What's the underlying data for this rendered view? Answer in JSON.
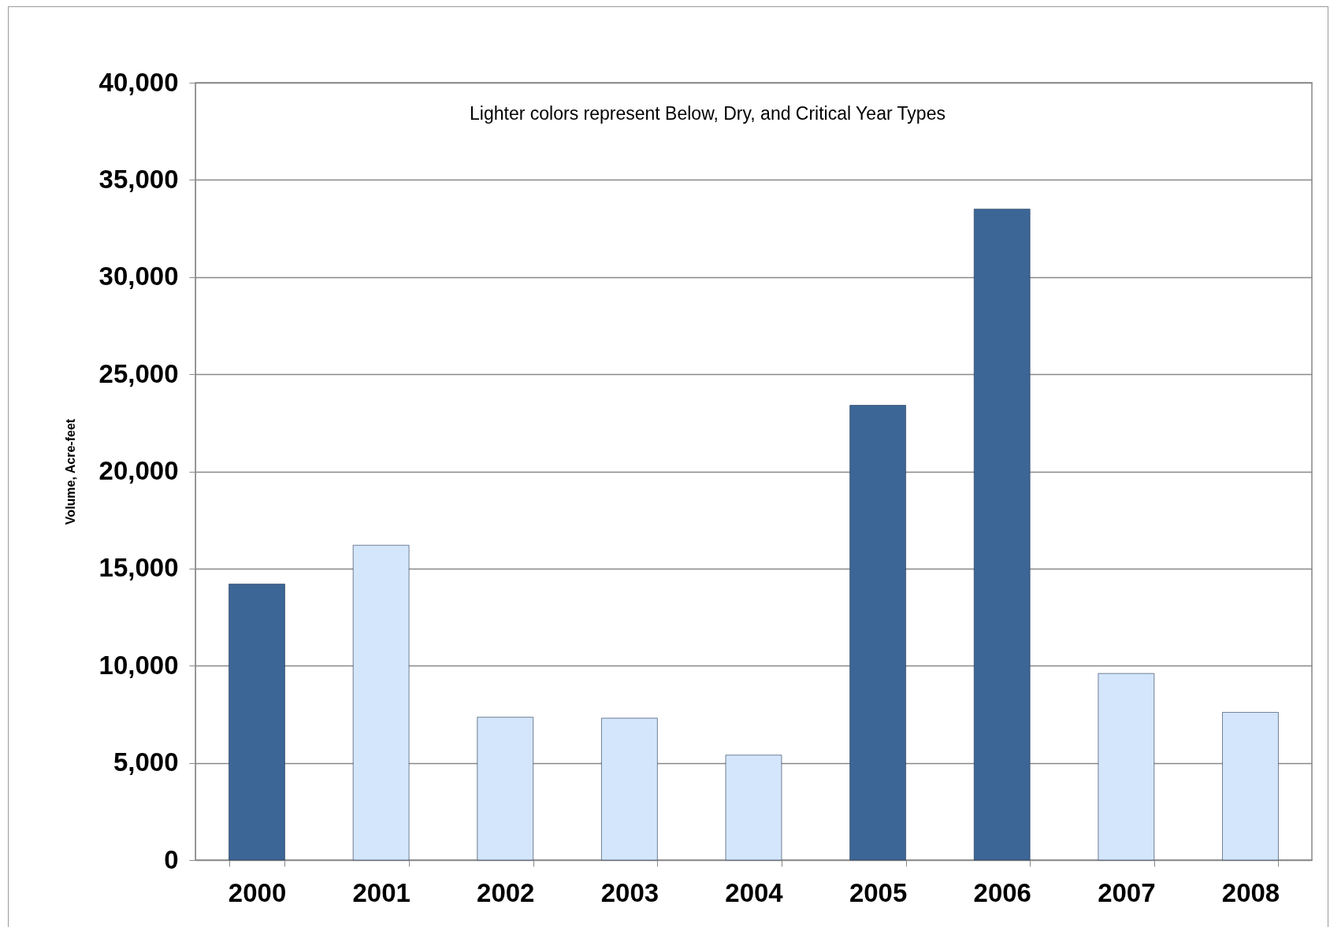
{
  "chart_data": {
    "type": "bar",
    "ylabel": "Volume, Acre-feet",
    "categories": [
      "2000",
      "2001",
      "2002",
      "2003",
      "2004",
      "2005",
      "2006",
      "2007",
      "2008"
    ],
    "values": [
      14200,
      16200,
      7350,
      7300,
      5400,
      23400,
      33500,
      9600,
      7600
    ],
    "colors": [
      "#3c6696",
      "#d4e6fb",
      "#d4e6fb",
      "#d4e6fb",
      "#d4e6fb",
      "#3c6696",
      "#3c6696",
      "#d4e6fb",
      "#d4e6fb"
    ],
    "ylim": [
      0,
      40000
    ],
    "yticks": [
      0,
      {
        "value": 5000,
        "label": "5,000"
      },
      {
        "value": 10000,
        "label": "10,000"
      },
      {
        "value": 15000,
        "label": "15,000"
      },
      {
        "value": 20000,
        "label": "20,000"
      },
      {
        "value": 25000,
        "label": "25,000"
      },
      {
        "value": 30000,
        "label": "30,000"
      },
      {
        "value": 35000,
        "label": "35,000"
      },
      {
        "value": 40000,
        "label": "40,000"
      }
    ],
    "grid": "y",
    "legend": false,
    "annotations": [
      "Lighter colors represent Below, Dry, and Critical Year Types"
    ]
  }
}
